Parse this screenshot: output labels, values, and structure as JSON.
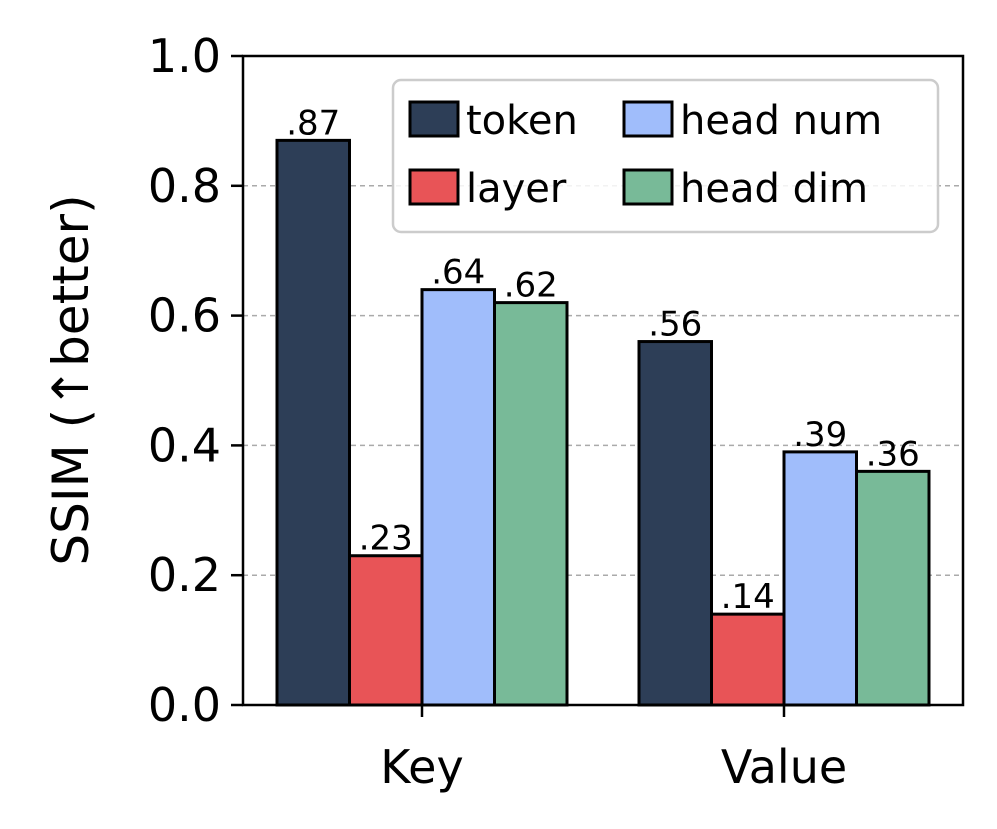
{
  "chart_data": {
    "type": "bar",
    "categories": [
      "Key",
      "Value"
    ],
    "series": [
      {
        "name": "token",
        "color": "#2d3e57",
        "values": [
          0.87,
          0.56
        ],
        "labels": [
          ".87",
          ".56"
        ]
      },
      {
        "name": "layer",
        "color": "#e85457",
        "values": [
          0.23,
          0.14
        ],
        "labels": [
          ".23",
          ".14"
        ]
      },
      {
        "name": "head num",
        "color": "#a0bdfb",
        "values": [
          0.64,
          0.39
        ],
        "labels": [
          ".64",
          ".39"
        ]
      },
      {
        "name": "head dim",
        "color": "#78ba98",
        "values": [
          0.62,
          0.36
        ],
        "labels": [
          ".62",
          ".36"
        ]
      }
    ],
    "ylabel": "SSIM (↑better)",
    "xlabel": "",
    "ylim": [
      0,
      1.0
    ],
    "yticks": [
      0.0,
      0.2,
      0.4,
      0.6,
      0.8,
      1.0
    ],
    "ytick_labels": [
      "0.0",
      "0.2",
      "0.4",
      "0.6",
      "0.8",
      "1.0"
    ],
    "grid": "horizontal dashed",
    "legend_position": "top-right",
    "legend_columns": 2
  }
}
